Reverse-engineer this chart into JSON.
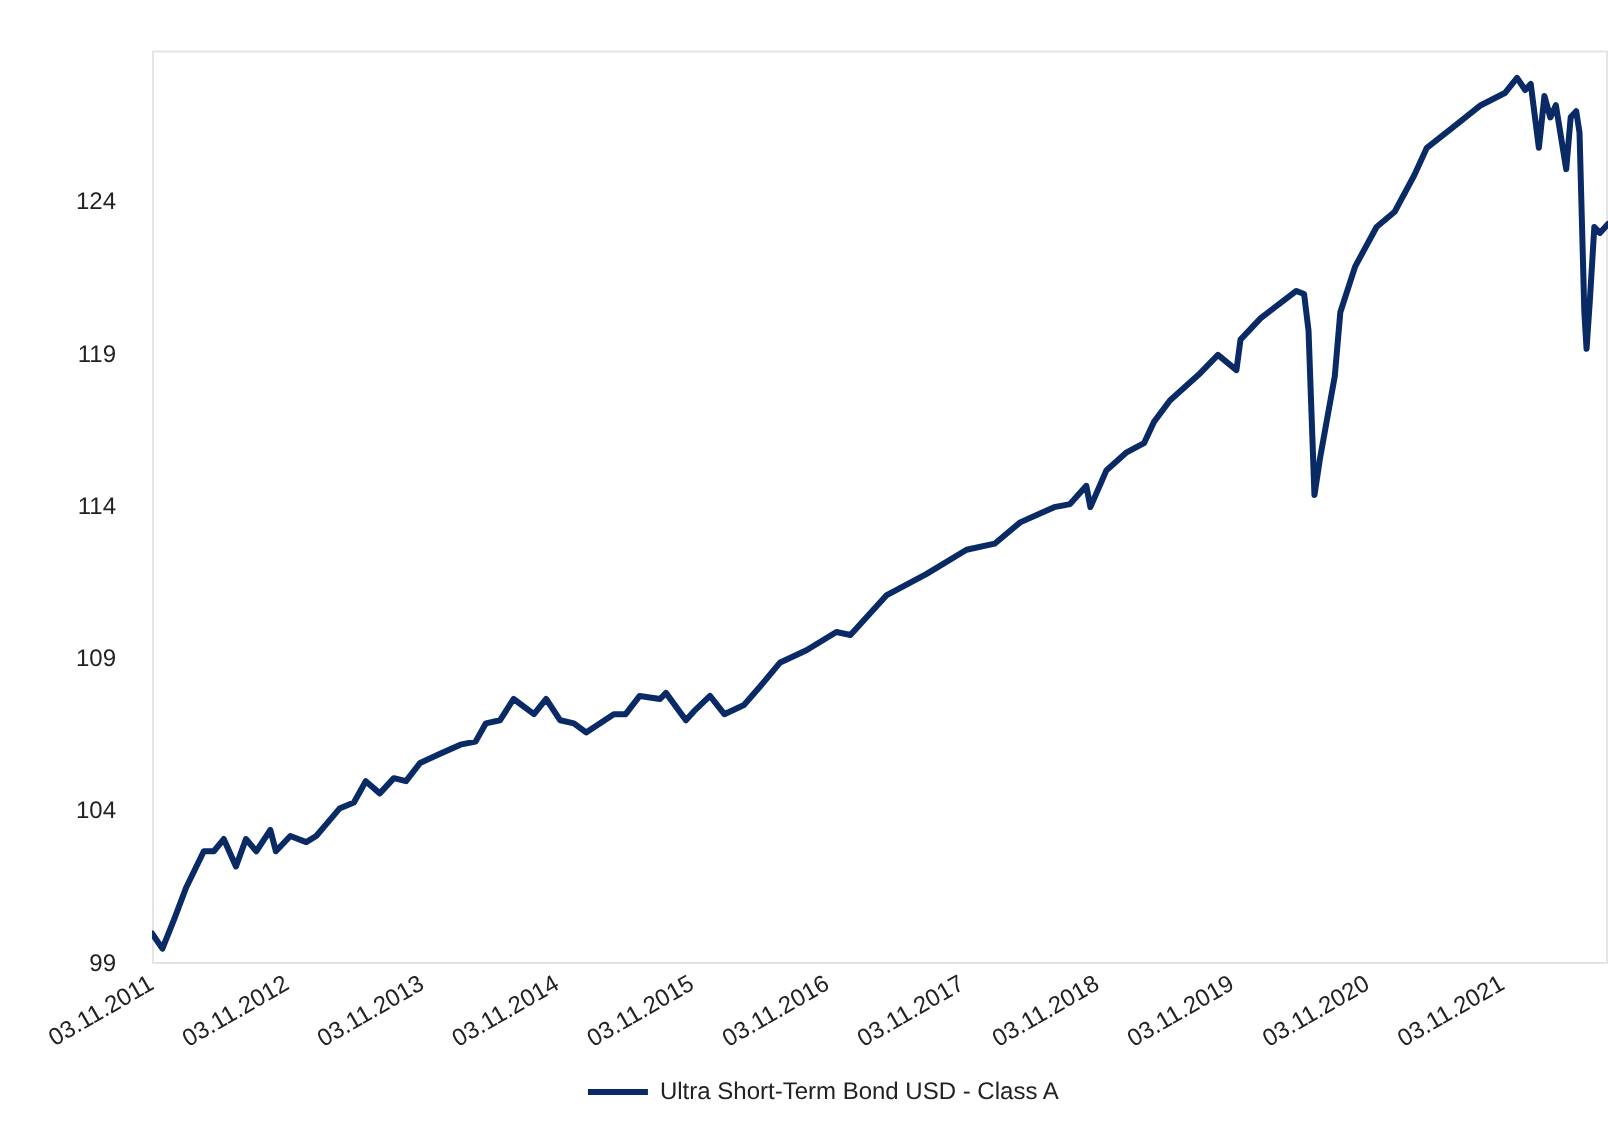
{
  "chart_data": {
    "type": "line",
    "legend": "bottom",
    "marker": "none",
    "line_style": "solid",
    "grid": false,
    "xticks": [
      {
        "value": "2011-11-03",
        "label": "03.11.2011"
      },
      {
        "value": "2012-11-03",
        "label": "03.11.2012"
      },
      {
        "value": "2013-11-03",
        "label": "03.11.2013"
      },
      {
        "value": "2014-11-03",
        "label": "03.11.2014"
      },
      {
        "value": "2015-11-03",
        "label": "03.11.2015"
      },
      {
        "value": "2016-11-03",
        "label": "03.11.2016"
      },
      {
        "value": "2017-11-03",
        "label": "03.11.2017"
      },
      {
        "value": "2018-11-03",
        "label": "03.11.2018"
      },
      {
        "value": "2019-11-03",
        "label": "03.11.2019"
      },
      {
        "value": "2020-11-03",
        "label": "03.11.2020"
      },
      {
        "value": "2021-11-03",
        "label": "03.11.2021"
      }
    ],
    "xlim": [
      "2011-11-03",
      "2022-08-15"
    ],
    "ylim": [
      99,
      129
    ],
    "yticks": [
      99,
      104,
      109,
      114,
      119,
      124
    ],
    "x": [
      "2011-11-03",
      "2011-12-01",
      "2012-01-03",
      "2012-02-03",
      "2012-03-22",
      "2012-04-18",
      "2012-05-15",
      "2012-06-17",
      "2012-07-14",
      "2012-08-11",
      "2012-09-18",
      "2012-10-03",
      "2012-11-11",
      "2012-12-24",
      "2013-01-20",
      "2013-02-17",
      "2013-03-24",
      "2013-05-02",
      "2013-06-03",
      "2013-07-11",
      "2013-08-18",
      "2013-09-20",
      "2013-10-28",
      "2013-12-21",
      "2014-02-14",
      "2014-03-27",
      "2014-04-24",
      "2014-06-01",
      "2014-07-08",
      "2014-09-01",
      "2014-10-04",
      "2014-11-11",
      "2014-12-18",
      "2015-01-20",
      "2015-04-05",
      "2015-05-07",
      "2015-06-14",
      "2015-08-08",
      "2015-08-24",
      "2015-10-17",
      "2015-11-08",
      "2015-12-21",
      "2016-01-29",
      "2016-03-22",
      "2016-05-04",
      "2016-06-28",
      "2016-09-07",
      "2016-11-27",
      "2017-01-04",
      "2017-04-11",
      "2017-07-28",
      "2017-11-14",
      "2018-01-29",
      "2018-04-08",
      "2018-07-09",
      "2018-08-21",
      "2018-10-04",
      "2018-10-15",
      "2018-11-27",
      "2019-01-21",
      "2019-03-09",
      "2019-04-05",
      "2019-05-18",
      "2019-08-08",
      "2019-09-25",
      "2019-11-14",
      "2019-11-25",
      "2020-01-18",
      "2020-04-24",
      "2020-05-15",
      "2020-05-27",
      "2020-06-12",
      "2020-06-27",
      "2020-08-06",
      "2020-08-21",
      "2020-09-30",
      "2020-11-27",
      "2021-01-15",
      "2021-03-09",
      "2021-04-12",
      "2021-06-24",
      "2021-09-05",
      "2021-11-09",
      "2021-12-12",
      "2022-01-03",
      "2022-01-18",
      "2022-02-09",
      "2022-02-24",
      "2022-03-12",
      "2022-03-27",
      "2022-04-24",
      "2022-05-06",
      "2022-05-21",
      "2022-05-30",
      "2022-06-12",
      "2022-06-18",
      "2022-06-27",
      "2022-07-09",
      "2022-07-24",
      "2022-08-15"
    ],
    "series": [
      {
        "name": "Ultra Short-Term Bond USD - Class A",
        "color": "#0a2a66",
        "values": [
          100.0,
          99.5,
          100.5,
          101.5,
          102.7,
          102.7,
          103.1,
          102.2,
          103.1,
          102.7,
          103.4,
          102.7,
          103.2,
          103.0,
          103.2,
          103.6,
          104.1,
          104.3,
          105.0,
          104.6,
          105.1,
          105.0,
          105.6,
          105.9,
          106.2,
          106.3,
          106.9,
          107.0,
          107.7,
          107.2,
          107.7,
          107.0,
          106.9,
          106.6,
          107.2,
          107.2,
          107.8,
          107.7,
          107.9,
          107.0,
          107.3,
          107.8,
          107.2,
          107.5,
          108.1,
          108.9,
          109.3,
          109.9,
          109.8,
          111.1,
          111.8,
          112.6,
          112.8,
          113.5,
          114.0,
          114.1,
          114.7,
          114.0,
          115.2,
          115.8,
          116.1,
          116.8,
          117.5,
          118.4,
          119.0,
          118.5,
          119.5,
          120.2,
          121.1,
          121.0,
          119.8,
          114.4,
          115.6,
          118.3,
          120.4,
          121.9,
          123.2,
          123.7,
          124.9,
          125.8,
          126.5,
          127.2,
          127.6,
          128.1,
          127.7,
          127.9,
          125.8,
          127.5,
          126.8,
          127.2,
          125.1,
          126.8,
          127.0,
          126.3,
          120.4,
          119.2,
          120.8,
          123.2,
          123.0,
          123.3
        ]
      }
    ]
  }
}
